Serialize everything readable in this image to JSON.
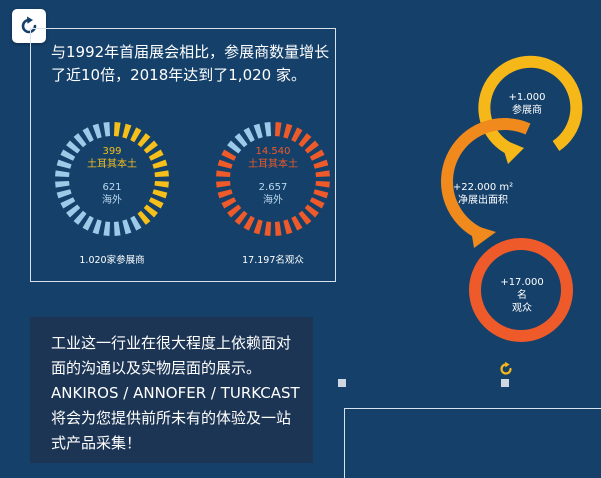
{
  "headline": "与1992年首届展会相比，参展商数量增长了近10倍，2018年达到了1,020 家。",
  "ring_left": {
    "domestic_value": "399",
    "domestic_label": "土耳其本土",
    "foreign_value": "621",
    "foreign_label": "海外",
    "caption": "1.020家参展商",
    "domestic_share": 0.391,
    "colors": {
      "domestic": "#f6bf19",
      "foreign": "#9ccbea"
    }
  },
  "ring_right": {
    "domestic_value": "14.540",
    "domestic_label": "土耳其本土",
    "foreign_value": "2.657",
    "foreign_label": "海外",
    "caption": "17.197名观众",
    "domestic_share": 0.845,
    "colors": {
      "domestic": "#ee5a29",
      "foreign": "#9ccbea"
    }
  },
  "info_text": "工业这一行业在很大程度上依赖面对面的沟通以及实物层面的展示。ANKIROS / ANNOFER / TURKCAST 将会为您提供前所未有的体验及一站式产品采集！",
  "flow": [
    {
      "value": "+1.000",
      "label": "参展商",
      "color": "#f6b818"
    },
    {
      "value": "+22.000 m²",
      "label": "净展出面积",
      "color": "#f08a1c"
    },
    {
      "value": "+17.000 名",
      "label": "观众",
      "color": "#ee5a29"
    }
  ],
  "icons": {
    "refresh": "refresh-icon",
    "rotate": "rotate-icon"
  },
  "colors": {
    "background": "#14406a",
    "info_box": "#1c3554",
    "frame": "#d8e2ec"
  }
}
